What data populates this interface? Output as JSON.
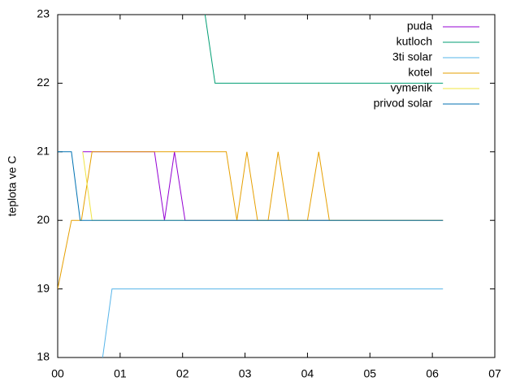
{
  "chart_data": {
    "type": "line",
    "ylabel": "teplota ve C",
    "xlim": [
      0,
      7
    ],
    "xticks": [
      {
        "value": 0,
        "label": "00"
      },
      {
        "value": 1,
        "label": "01"
      },
      {
        "value": 2,
        "label": "02"
      },
      {
        "value": 3,
        "label": "03"
      },
      {
        "value": 4,
        "label": "04"
      },
      {
        "value": 5,
        "label": "05"
      },
      {
        "value": 6,
        "label": "06"
      },
      {
        "value": 7,
        "label": "07"
      }
    ],
    "ylim": [
      18,
      23
    ],
    "yticks": [
      18,
      19,
      20,
      21,
      22,
      23
    ],
    "legend": "top-right",
    "series": [
      {
        "name": "puda",
        "color": "#9400d3",
        "x": [
          0.4,
          1.55,
          1.71,
          1.87,
          2.04,
          6.17
        ],
        "values": [
          21,
          21,
          20,
          21,
          20,
          20
        ]
      },
      {
        "name": "kutloch",
        "color": "#009e73",
        "x": [
          2.36,
          2.52,
          6.17
        ],
        "values": [
          23,
          22,
          22
        ]
      },
      {
        "name": "3ti solar",
        "color": "#56b4e9",
        "x": [
          0.72,
          0.87,
          6.17
        ],
        "values": [
          18,
          19,
          19
        ]
      },
      {
        "name": "kotel",
        "color": "#e69f00",
        "x": [
          0,
          0.22,
          0.38,
          0.55,
          2.7,
          2.87,
          3.03,
          3.2,
          3.37,
          3.53,
          3.7,
          4.0,
          4.18,
          4.35,
          6.17
        ],
        "values": [
          19,
          20,
          20,
          21,
          21,
          20,
          21,
          20,
          20,
          21,
          20,
          20,
          21,
          20,
          20
        ]
      },
      {
        "name": "vymenik",
        "color": "#f0e442",
        "x": [
          0.4,
          0.55,
          6.17
        ],
        "values": [
          21,
          20,
          20
        ]
      },
      {
        "name": "privod solar",
        "color": "#0072b2",
        "x": [
          0,
          0.22,
          0.36,
          6.17
        ],
        "values": [
          21,
          21,
          20,
          20
        ]
      }
    ]
  }
}
